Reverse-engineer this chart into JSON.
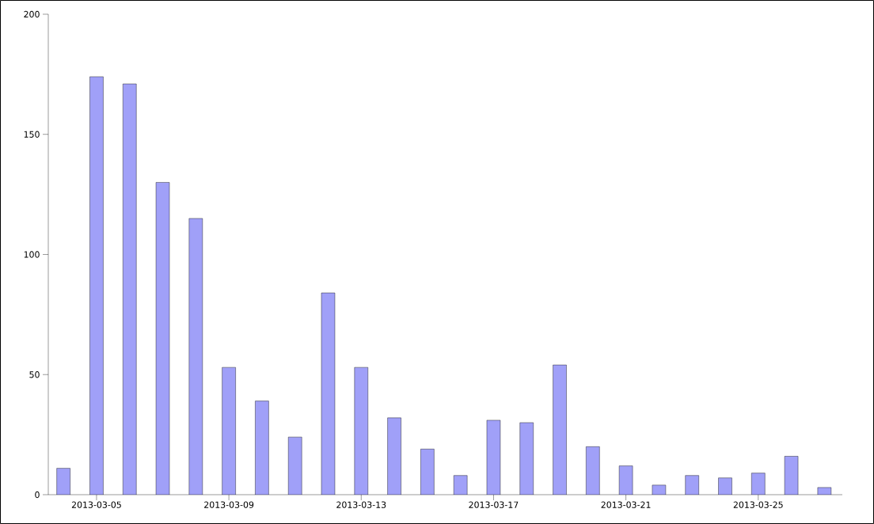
{
  "chart_data": {
    "type": "bar",
    "x": [
      "2013-03-04",
      "2013-03-05",
      "2013-03-06",
      "2013-03-07",
      "2013-03-08",
      "2013-03-09",
      "2013-03-10",
      "2013-03-11",
      "2013-03-12",
      "2013-03-13",
      "2013-03-14",
      "2013-03-15",
      "2013-03-16",
      "2013-03-17",
      "2013-03-18",
      "2013-03-19",
      "2013-03-20",
      "2013-03-21",
      "2013-03-22",
      "2013-03-23",
      "2013-03-24",
      "2013-03-25",
      "2013-03-26",
      "2013-03-27"
    ],
    "values": [
      11,
      174,
      171,
      130,
      115,
      53,
      39,
      24,
      84,
      53,
      32,
      19,
      8,
      31,
      30,
      54,
      20,
      12,
      4,
      8,
      7,
      9,
      16,
      3
    ],
    "color": "#a0a0f8",
    "xlim": [
      "2013-03-03T13:00",
      "2013-03-27T13:00"
    ],
    "xticks": [
      "2013-03-05",
      "2013-03-09",
      "2013-03-13",
      "2013-03-17",
      "2013-03-21",
      "2013-03-25"
    ],
    "ylim": [
      0,
      200
    ],
    "yticks": [
      0,
      50,
      100,
      150,
      200
    ]
  }
}
